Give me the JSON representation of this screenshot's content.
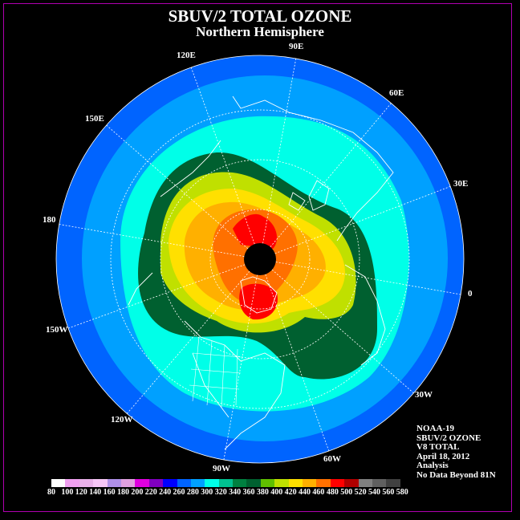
{
  "title": "SBUV/2 TOTAL OZONE",
  "subtitle": "Northern Hemisphere",
  "longitude_labels": [
    "90E",
    "60E",
    "30E",
    "0",
    "30W",
    "60W",
    "90W",
    "120W",
    "150W",
    "180",
    "150E",
    "120E"
  ],
  "info_lines": [
    "NOAA-19",
    "SBUV/2 OZONE",
    "V8 TOTAL",
    "April 18, 2012",
    "Analysis",
    "No Data Beyond 81N"
  ],
  "colorbar": {
    "labels": [
      "80",
      "100",
      "120",
      "140",
      "160",
      "180",
      "200",
      "220",
      "240",
      "260",
      "280",
      "300",
      "320",
      "340",
      "360",
      "380",
      "400",
      "420",
      "440",
      "460",
      "480",
      "500",
      "520",
      "540",
      "560",
      "580"
    ],
    "colors": [
      "#ffffff",
      "#f0a0f0",
      "#e8b0e8",
      "#f6c6f6",
      "#b090e8",
      "#e0a0e0",
      "#e000e0",
      "#8000c0",
      "#0000ff",
      "#0064ff",
      "#00a0ff",
      "#00ffe8",
      "#00c090",
      "#008040",
      "#006030",
      "#60c000",
      "#c0e000",
      "#ffe000",
      "#ffb000",
      "#ff7000",
      "#ff0000",
      "#b00000",
      "#808080",
      "#606060",
      "#404040"
    ]
  },
  "ozone_regions": [
    {
      "level": "240",
      "color": "#0064ff"
    },
    {
      "level": "260",
      "color": "#00a0ff"
    },
    {
      "level": "280",
      "color": "#00ffe8"
    },
    {
      "level": "320",
      "color": "#006030"
    },
    {
      "level": "380",
      "color": "#c0e000"
    },
    {
      "level": "420",
      "color": "#ffe000"
    },
    {
      "level": "440",
      "color": "#ffb000"
    },
    {
      "level": "460",
      "color": "#ff7000"
    },
    {
      "level": "480",
      "color": "#ff0000"
    }
  ],
  "no_data_color": "#000000"
}
